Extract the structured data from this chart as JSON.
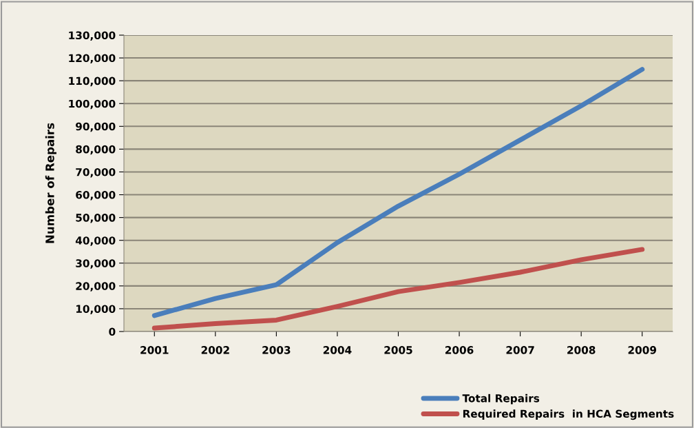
{
  "chart_data": {
    "type": "line",
    "ylabel": "Number of Repairs",
    "categories": [
      "2001",
      "2002",
      "2003",
      "2004",
      "2005",
      "2006",
      "2007",
      "2008",
      "2009"
    ],
    "series": [
      {
        "name": "Total Repairs",
        "color": "#4a7ebb",
        "values": [
          7000,
          14500,
          20500,
          39000,
          55000,
          69000,
          84000,
          99000,
          115000
        ]
      },
      {
        "name": "Required Repairs  in HCA Segments",
        "color": "#c0504d",
        "values": [
          1500,
          3500,
          5000,
          11000,
          17500,
          21500,
          26000,
          31500,
          36000
        ]
      }
    ],
    "ylim": [
      0,
      130000
    ],
    "yticks": [
      {
        "value": 0,
        "label": "0"
      },
      {
        "value": 10000,
        "label": "10,000"
      },
      {
        "value": 20000,
        "label": "20,000"
      },
      {
        "value": 30000,
        "label": "30,000"
      },
      {
        "value": 40000,
        "label": "40,000"
      },
      {
        "value": 50000,
        "label": "50,000"
      },
      {
        "value": 60000,
        "label": "60,000"
      },
      {
        "value": 70000,
        "label": "70,000"
      },
      {
        "value": 80000,
        "label": "80,000"
      },
      {
        "value": 90000,
        "label": "90,000"
      },
      {
        "value": 100000,
        "label": "100,000"
      },
      {
        "value": 110000,
        "label": "110,000"
      },
      {
        "value": 120000,
        "label": "120,000"
      },
      {
        "value": 130000,
        "label": "130,000"
      }
    ],
    "grid": "y",
    "legend": "bottom right",
    "marker": "none",
    "line_style": "solid"
  }
}
